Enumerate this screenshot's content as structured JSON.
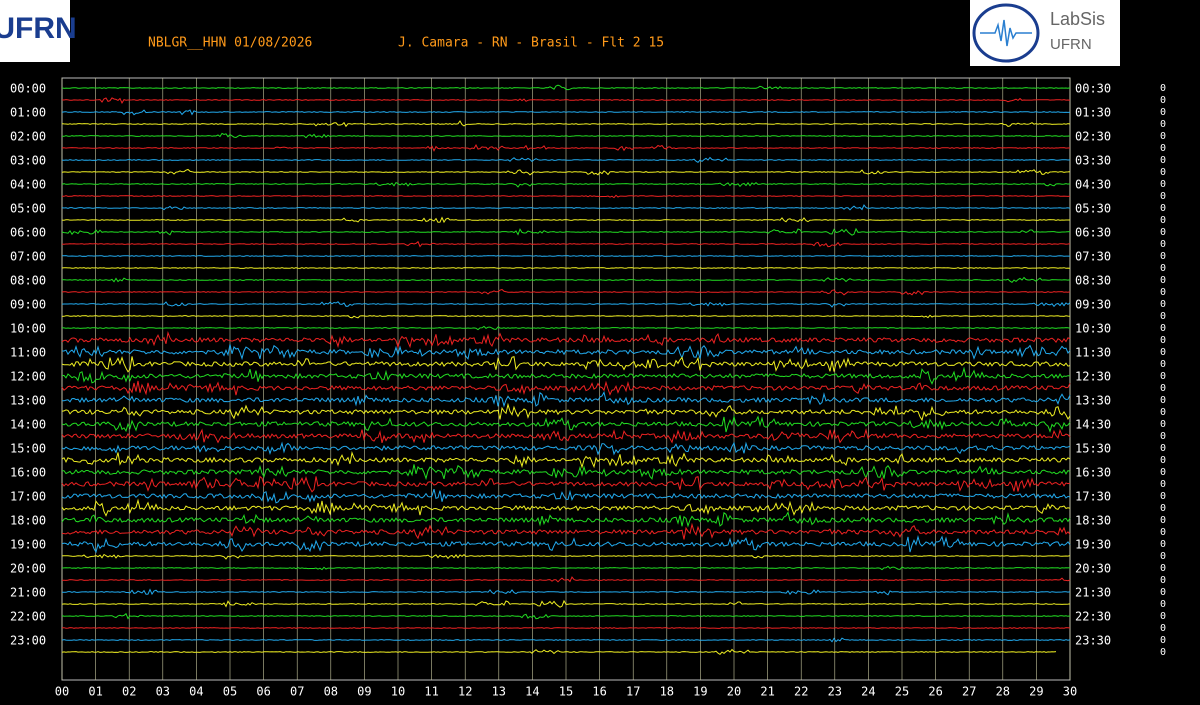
{
  "header": {
    "station": "NBLGR__HHN 01/08/2026",
    "info": "J. Camara - RN - Brasil - Flt 2 15"
  },
  "logos": {
    "left": "UFRN",
    "right_title": "LabSis",
    "right_sub": "UFRN"
  },
  "left_labels": [
    "00:00",
    "01:00",
    "02:00",
    "03:00",
    "04:00",
    "05:00",
    "06:00",
    "07:00",
    "08:00",
    "09:00",
    "10:00",
    "11:00",
    "12:00",
    "13:00",
    "14:00",
    "15:00",
    "16:00",
    "17:00",
    "18:00",
    "19:00",
    "20:00",
    "21:00",
    "22:00",
    "23:00"
  ],
  "right_labels": [
    "00:30",
    "01:30",
    "02:30",
    "03:30",
    "04:30",
    "05:30",
    "06:30",
    "07:30",
    "08:30",
    "09:30",
    "10:30",
    "11:30",
    "12:30",
    "13:30",
    "14:30",
    "15:30",
    "16:30",
    "17:30",
    "18:30",
    "19:30",
    "20:30",
    "21:30",
    "22:30",
    "23:30"
  ],
  "minute_labels": [
    "00",
    "01",
    "02",
    "03",
    "04",
    "05",
    "06",
    "07",
    "08",
    "09",
    "10",
    "11",
    "12",
    "13",
    "14",
    "15",
    "16",
    "17",
    "18",
    "19",
    "20",
    "21",
    "22",
    "23",
    "24",
    "25",
    "26",
    "27",
    "28",
    "29",
    "30"
  ],
  "right_column": [
    "0",
    "0",
    "0",
    "0",
    "0",
    "0",
    "0",
    "0",
    "0",
    "0",
    "0",
    "0",
    "0",
    "0",
    "0",
    "0",
    "0",
    "0",
    "0",
    "0",
    "0",
    "0",
    "0",
    "0",
    "0",
    "0",
    "0",
    "0",
    "0",
    "0",
    "0",
    "0",
    "0",
    "0",
    "0",
    "0",
    "0",
    "0",
    "0",
    "0",
    "0",
    "0",
    "0",
    "0",
    "0",
    "0",
    "0",
    "0"
  ]
}
